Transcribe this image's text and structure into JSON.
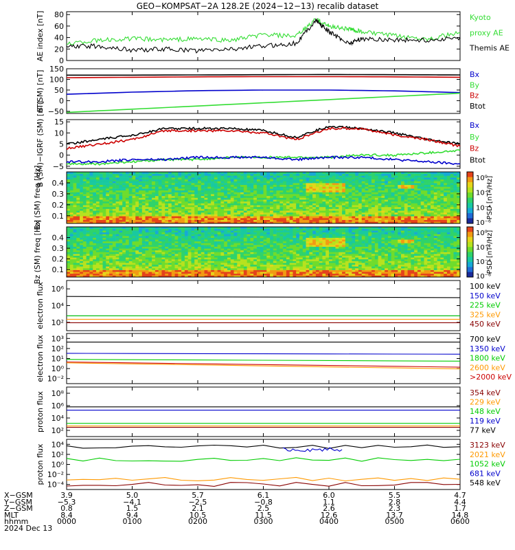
{
  "title": "GEO−KOMPSAT−2A 128.2E (2024−12−13) recalib dataset",
  "colors": {
    "black": "#000000",
    "blue": "#0000cc",
    "green": "#00cc00",
    "red": "#cc0000",
    "lightgreen": "#33dd33",
    "orange": "#ff9900",
    "darkred": "#880000"
  },
  "panels": [
    {
      "id": "ae",
      "ylabel": "AE index [nT]",
      "yticks": [
        "0",
        "20",
        "40",
        "60",
        "80"
      ],
      "ylim": [
        0,
        85
      ],
      "legend": [
        {
          "text": "Kyoto",
          "color": "lightgreen"
        },
        {
          "text": "proxy AE",
          "color": "lightgreen"
        },
        {
          "text": "Themis AE",
          "color": "black"
        }
      ]
    },
    {
      "id": "bsm",
      "ylabel": "B (SM) [nT]",
      "yticks": [
        "−50",
        "0",
        "50",
        "100",
        "150"
      ],
      "ylim": [
        -60,
        150
      ],
      "legend": [
        {
          "text": "Bx",
          "color": "blue"
        },
        {
          "text": "By",
          "color": "lightgreen"
        },
        {
          "text": "Bz",
          "color": "red"
        },
        {
          "text": "Btot",
          "color": "black"
        }
      ]
    },
    {
      "id": "bigrf",
      "ylabel": "B (SM)−IGRF (SM) [nT]",
      "yticks": [
        "−5",
        "0",
        "5",
        "10",
        "15"
      ],
      "ylim": [
        -6,
        16
      ],
      "legend": [
        {
          "text": "Bx",
          "color": "blue"
        },
        {
          "text": "By",
          "color": "lightgreen"
        },
        {
          "text": "Bz",
          "color": "red"
        },
        {
          "text": "Btot",
          "color": "black"
        }
      ]
    },
    {
      "id": "bxspec",
      "ylabel": "Bx (SM) freq [Hz]",
      "yticks": [
        "0.1",
        "0.2",
        "0.3",
        "0.4"
      ],
      "ylim": [
        0.03,
        0.5
      ],
      "cbar_label": "PSD [nT²/Hz]",
      "cbar_ticks": [
        "10⁰",
        "10⁻²",
        "10⁻⁴",
        "10⁻⁶"
      ]
    },
    {
      "id": "bzspec",
      "ylabel": "Bz (SM) freq [Hz]",
      "yticks": [
        "0.1",
        "0.2",
        "0.3",
        "0.4"
      ],
      "ylim": [
        0.03,
        0.5
      ],
      "cbar_label": "PSD [nT²/Hz]",
      "cbar_ticks": [
        "10⁰",
        "10⁻²",
        "10⁻⁴",
        "10⁻⁶"
      ]
    },
    {
      "id": "eflux1",
      "ylabel": "electron flux",
      "yticks": [
        "10²",
        "10⁴",
        "10⁶"
      ],
      "ylog": [
        1.8,
        6.2
      ],
      "legend": [
        {
          "text": "100 keV",
          "color": "black"
        },
        {
          "text": "150 keV",
          "color": "blue"
        },
        {
          "text": "225 keV",
          "color": "green"
        },
        {
          "text": "325 keV",
          "color": "orange"
        },
        {
          "text": "450 keV",
          "color": "darkred"
        }
      ]
    },
    {
      "id": "eflux2",
      "ylabel": "electron flux",
      "yticks": [
        "10⁻²",
        "10⁰",
        "10¹",
        "10²",
        "10³"
      ],
      "ylog": [
        -2.5,
        3.3
      ],
      "legend": [
        {
          "text": "700 keV",
          "color": "black"
        },
        {
          "text": "1350 keV",
          "color": "blue"
        },
        {
          "text": "1800 keV",
          "color": "green"
        },
        {
          "text": "2600 keV",
          "color": "orange"
        },
        {
          "text": ">2000 keV",
          "color": "red"
        }
      ]
    },
    {
      "id": "pflux1",
      "ylabel": "proton flux",
      "yticks": [
        "10²",
        "10⁴",
        "10⁶",
        "10⁸"
      ],
      "ylog": [
        1.5,
        9
      ],
      "legend": [
        {
          "text": "354 keV",
          "color": "darkred"
        },
        {
          "text": "229 keV",
          "color": "orange"
        },
        {
          "text": "148 keV",
          "color": "green"
        },
        {
          "text": "119 keV",
          "color": "blue"
        },
        {
          "text": "77 keV",
          "color": "black"
        }
      ]
    },
    {
      "id": "pflux2",
      "ylabel": "proton flux",
      "yticks": [
        "10⁻⁴",
        "10⁻²",
        "10⁰",
        "10²",
        "10⁴"
      ],
      "ylog": [
        -4.6,
        4.2
      ],
      "legend": [
        {
          "text": "3123 keV",
          "color": "darkred"
        },
        {
          "text": "2021 keV",
          "color": "orange"
        },
        {
          "text": "1052 keV",
          "color": "green"
        },
        {
          "text": "681 keV",
          "color": "blue"
        },
        {
          "text": "548 keV",
          "color": "black"
        }
      ]
    }
  ],
  "ephemeris": [
    {
      "label": "X−GSM",
      "values": [
        "3.9",
        "5.0",
        "5.7",
        "6.1",
        "6.0",
        "5.5",
        "4.7"
      ]
    },
    {
      "label": "Y−GSM",
      "values": [
        "−5.3",
        "−4.1",
        "−2.5",
        "−0.8",
        "1.1",
        "2.8",
        "4.4"
      ]
    },
    {
      "label": "Z−GSM",
      "values": [
        "0.8",
        "1.5",
        "2.1",
        "2.5",
        "2.6",
        "2.3",
        "1.7"
      ]
    },
    {
      "label": "MLT",
      "values": [
        "8.4",
        "9.4",
        "10.5",
        "11.5",
        "12.6",
        "13.7",
        "14.8"
      ]
    },
    {
      "label": "hhmm",
      "values": [
        "0000",
        "0100",
        "0200",
        "0300",
        "0400",
        "0500",
        "0600"
      ]
    }
  ],
  "date_label": "2024 Dec 13",
  "chart_data": {
    "type": "line",
    "x_hours": [
      0,
      1,
      2,
      3,
      4,
      5,
      6
    ],
    "series": [
      {
        "panel": "ae",
        "name": "Kyoto proxy AE",
        "points": [
          [
            0,
            30
          ],
          [
            0.5,
            35
          ],
          [
            1,
            38
          ],
          [
            1.5,
            36
          ],
          [
            2,
            38
          ],
          [
            2.5,
            35
          ],
          [
            3,
            45
          ],
          [
            3.5,
            42
          ],
          [
            3.8,
            72
          ],
          [
            4,
            60
          ],
          [
            4.3,
            55
          ],
          [
            4.5,
            50
          ],
          [
            5,
            43
          ],
          [
            5.5,
            38
          ],
          [
            6,
            48
          ]
        ]
      },
      {
        "panel": "ae",
        "name": "Themis AE",
        "points": [
          [
            0,
            24
          ],
          [
            0.5,
            25
          ],
          [
            1,
            18
          ],
          [
            1.5,
            20
          ],
          [
            2,
            17
          ],
          [
            2.5,
            20
          ],
          [
            3,
            25
          ],
          [
            3.5,
            30
          ],
          [
            3.8,
            70
          ],
          [
            4,
            50
          ],
          [
            4.3,
            30
          ],
          [
            4.5,
            38
          ],
          [
            5,
            36
          ],
          [
            5.5,
            35
          ],
          [
            6,
            40
          ]
        ]
      },
      {
        "panel": "bsm",
        "name": "Btot",
        "points": [
          [
            0,
            120
          ],
          [
            1,
            120
          ],
          [
            2,
            121
          ],
          [
            3,
            122
          ],
          [
            4,
            123
          ],
          [
            5,
            122
          ],
          [
            6,
            121
          ]
        ]
      },
      {
        "panel": "bsm",
        "name": "Bz",
        "points": [
          [
            0,
            108
          ],
          [
            1,
            110
          ],
          [
            2,
            112
          ],
          [
            3,
            113
          ],
          [
            4,
            113
          ],
          [
            5,
            112
          ],
          [
            6,
            110
          ]
        ]
      },
      {
        "panel": "bsm",
        "name": "Bx",
        "points": [
          [
            0,
            30
          ],
          [
            1,
            40
          ],
          [
            2,
            47
          ],
          [
            3,
            50
          ],
          [
            4,
            50
          ],
          [
            5,
            46
          ],
          [
            6,
            38
          ]
        ]
      },
      {
        "panel": "bsm",
        "name": "By",
        "points": [
          [
            0,
            -55
          ],
          [
            1,
            -40
          ],
          [
            2,
            -25
          ],
          [
            3,
            -10
          ],
          [
            4,
            5
          ],
          [
            5,
            20
          ],
          [
            6,
            35
          ]
        ]
      },
      {
        "panel": "bigrf",
        "name": "Btot",
        "points": [
          [
            0,
            5
          ],
          [
            0.5,
            7
          ],
          [
            1,
            9
          ],
          [
            1.5,
            12
          ],
          [
            2,
            12
          ],
          [
            2.5,
            12
          ],
          [
            3,
            11
          ],
          [
            3.5,
            8
          ],
          [
            4,
            13
          ],
          [
            4.5,
            12
          ],
          [
            5,
            10
          ],
          [
            5.5,
            7
          ],
          [
            6,
            5
          ]
        ]
      },
      {
        "panel": "bigrf",
        "name": "Bz",
        "points": [
          [
            0,
            3
          ],
          [
            0.5,
            5
          ],
          [
            1,
            7
          ],
          [
            1.5,
            11
          ],
          [
            2,
            11
          ],
          [
            2.5,
            11
          ],
          [
            3,
            10
          ],
          [
            3.5,
            7
          ],
          [
            4,
            12
          ],
          [
            4.5,
            12
          ],
          [
            5,
            9
          ],
          [
            5.5,
            7
          ],
          [
            6,
            4
          ]
        ]
      },
      {
        "panel": "bigrf",
        "name": "By",
        "points": [
          [
            0,
            -4
          ],
          [
            0.5,
            -4
          ],
          [
            1,
            -3
          ],
          [
            1.5,
            -2
          ],
          [
            2,
            -2
          ],
          [
            2.5,
            -1
          ],
          [
            3,
            -1
          ],
          [
            3.5,
            -1
          ],
          [
            4,
            -1
          ],
          [
            4.5,
            0
          ],
          [
            5,
            0
          ],
          [
            5.5,
            1
          ],
          [
            6,
            2
          ]
        ]
      },
      {
        "panel": "bigrf",
        "name": "Bx",
        "points": [
          [
            0,
            -3
          ],
          [
            0.5,
            -3
          ],
          [
            1,
            -2
          ],
          [
            1.5,
            -2
          ],
          [
            2,
            -1
          ],
          [
            2.5,
            -1
          ],
          [
            3,
            -1
          ],
          [
            3.5,
            -2
          ],
          [
            4,
            -1
          ],
          [
            4.5,
            -1
          ],
          [
            5,
            -2
          ],
          [
            5.5,
            -3
          ],
          [
            6,
            -4
          ]
        ]
      },
      {
        "panel": "eflux1",
        "name": "100 keV",
        "points": [
          [
            0,
            4.8
          ],
          [
            6,
            4.7
          ]
        ]
      },
      {
        "panel": "eflux1",
        "name": "150 keV",
        "points": [
          [
            0,
            3.1
          ],
          [
            6,
            3.1
          ]
        ]
      },
      {
        "panel": "eflux1",
        "name": "225 keV",
        "points": [
          [
            0,
            3.1
          ],
          [
            6,
            3.1
          ]
        ]
      },
      {
        "panel": "eflux1",
        "name": "325 keV",
        "points": [
          [
            0,
            2.8
          ],
          [
            6,
            2.8
          ]
        ]
      },
      {
        "panel": "eflux1",
        "name": "450 keV",
        "points": [
          [
            0,
            2.5
          ],
          [
            6,
            2.5
          ]
        ]
      },
      {
        "panel": "eflux2",
        "name": "700 keV",
        "points": [
          [
            0,
            2.3
          ],
          [
            6,
            2.3
          ]
        ]
      },
      {
        "panel": "eflux2",
        "name": "1350 keV",
        "points": [
          [
            0,
            1.0
          ],
          [
            6,
            0.9
          ]
        ]
      },
      {
        "panel": "eflux2",
        "name": "1800 keV",
        "points": [
          [
            0,
            0.3
          ],
          [
            6,
            0.1
          ]
        ]
      },
      {
        "panel": "eflux2",
        "name": "2600 keV",
        "points": [
          [
            0,
            -0.1
          ],
          [
            6,
            -0.8
          ]
        ]
      },
      {
        "panel": "eflux2",
        "name": ">2000 keV",
        "points": [
          [
            0,
            0.0
          ],
          [
            6,
            -0.6
          ]
        ]
      },
      {
        "panel": "pflux1",
        "name": "77 keV",
        "points": [
          [
            0,
            6.0
          ],
          [
            6,
            6.0
          ]
        ]
      },
      {
        "panel": "pflux1",
        "name": "119 keV",
        "points": [
          [
            0,
            5.5
          ],
          [
            6,
            5.5
          ]
        ]
      },
      {
        "panel": "pflux1",
        "name": "148 keV",
        "points": [
          [
            0,
            3.5
          ],
          [
            6,
            3.5
          ]
        ]
      },
      {
        "panel": "pflux1",
        "name": "229 keV",
        "points": [
          [
            0,
            3.1
          ],
          [
            6,
            3.1
          ]
        ]
      },
      {
        "panel": "pflux1",
        "name": "354 keV",
        "points": [
          [
            0,
            2.9
          ],
          [
            6,
            2.9
          ]
        ]
      },
      {
        "panel": "pflux2",
        "name": "548 keV",
        "points": [
          [
            0,
            2.9
          ],
          [
            6,
            2.9
          ]
        ]
      },
      {
        "panel": "pflux2",
        "name": "681 keV",
        "points": [
          [
            3.3,
            2.4
          ],
          [
            4.2,
            2.4
          ]
        ]
      },
      {
        "panel": "pflux2",
        "name": "1052 keV",
        "points": [
          [
            0,
            0.7
          ],
          [
            6,
            0.7
          ]
        ]
      },
      {
        "panel": "pflux2",
        "name": "2021 keV",
        "points": [
          [
            0,
            -2.8
          ],
          [
            6,
            -2.8
          ]
        ]
      },
      {
        "panel": "pflux2",
        "name": "3123 keV",
        "points": [
          [
            0,
            -3.7
          ],
          [
            6,
            -3.7
          ]
        ]
      }
    ]
  }
}
